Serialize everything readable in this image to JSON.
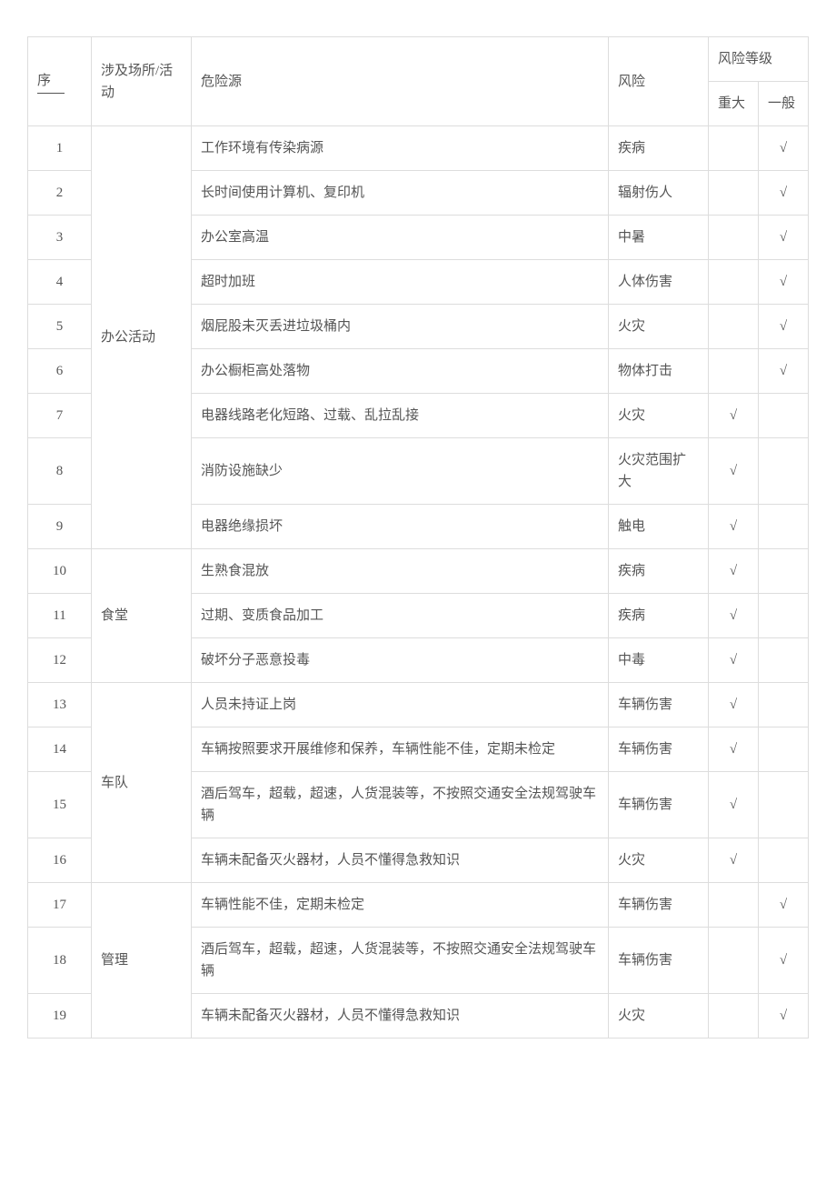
{
  "headers": {
    "seq": "序",
    "location": "涉及场所/活动",
    "hazard": "危险源",
    "risk": "风险",
    "level_group": "风险等级",
    "level_major": "重大",
    "level_general": "一般"
  },
  "check": "√",
  "groups": [
    {
      "location": "办公活动",
      "rows": [
        {
          "seq": "1",
          "hazard": "工作环境有传染病源",
          "risk": "疾病",
          "major": "",
          "general": "√"
        },
        {
          "seq": "2",
          "hazard": "长时间使用计算机、复印机",
          "risk": "辐射伤人",
          "major": "",
          "general": "√"
        },
        {
          "seq": "3",
          "hazard": "办公室高温",
          "risk": "中暑",
          "major": "",
          "general": "√"
        },
        {
          "seq": "4",
          "hazard": "超时加班",
          "risk": "人体伤害",
          "major": "",
          "general": "√"
        },
        {
          "seq": "5",
          "hazard": "烟屁股未灭丢进垃圾桶内",
          "risk": "火灾",
          "major": "",
          "general": "√"
        },
        {
          "seq": "6",
          "hazard": "办公橱柜高处落物",
          "risk": "物体打击",
          "major": "",
          "general": "√"
        },
        {
          "seq": "7",
          "hazard": "电器线路老化短路、过载、乱拉乱接",
          "risk": "火灾",
          "major": "√",
          "general": ""
        },
        {
          "seq": "8",
          "hazard": "消防设施缺少",
          "risk": "火灾范围扩大",
          "major": "√",
          "general": ""
        },
        {
          "seq": "9",
          "hazard": "电器绝缘损坏",
          "risk": "触电",
          "major": "√",
          "general": ""
        }
      ]
    },
    {
      "location": "食堂",
      "rows": [
        {
          "seq": "10",
          "hazard": "生熟食混放",
          "risk": "疾病",
          "major": "√",
          "general": ""
        },
        {
          "seq": "11",
          "hazard": "过期、变质食品加工",
          "risk": "疾病",
          "major": "√",
          "general": ""
        },
        {
          "seq": "12",
          "hazard": "破坏分子恶意投毒",
          "risk": "中毒",
          "major": "√",
          "general": ""
        }
      ]
    },
    {
      "location": "车队",
      "rows": [
        {
          "seq": "13",
          "hazard": "人员未持证上岗",
          "risk": "车辆伤害",
          "major": "√",
          "general": ""
        },
        {
          "seq": "14",
          "hazard": "车辆按照要求开展维修和保养，车辆性能不佳，定期未检定",
          "risk": "车辆伤害",
          "major": "√",
          "general": ""
        },
        {
          "seq": "15",
          "hazard": "酒后驾车，超载，超速，人货混装等，不按照交通安全法规驾驶车辆",
          "risk": "车辆伤害",
          "major": "√",
          "general": ""
        },
        {
          "seq": "16",
          "hazard": "车辆未配备灭火器材，人员不懂得急救知识",
          "risk": "火灾",
          "major": "√",
          "general": ""
        }
      ]
    },
    {
      "location": "管理",
      "rows": [
        {
          "seq": "17",
          "hazard": "车辆性能不佳，定期未检定",
          "risk": "车辆伤害",
          "major": "",
          "general": "√"
        },
        {
          "seq": "18",
          "hazard": "酒后驾车，超载，超速，人货混装等，不按照交通安全法规驾驶车辆",
          "risk": "车辆伤害",
          "major": "",
          "general": "√"
        },
        {
          "seq": "19",
          "hazard": "车辆未配备灭火器材，人员不懂得急救知识",
          "risk": "火灾",
          "major": "",
          "general": "√"
        }
      ]
    }
  ]
}
